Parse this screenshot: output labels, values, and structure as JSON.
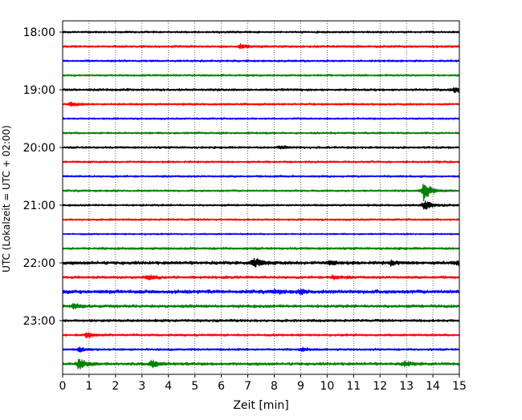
{
  "chart_data": {
    "type": "line",
    "title": "",
    "xlabel": "Zeit  [min]",
    "ylabel": "UTC (Lokalzeit = UTC + 02:00)",
    "xlim": [
      0,
      15
    ],
    "xticks": [
      0,
      1,
      2,
      3,
      4,
      5,
      6,
      7,
      8,
      9,
      10,
      11,
      12,
      13,
      14,
      15
    ],
    "ytick_labels": [
      "18:00",
      "19:00",
      "20:00",
      "21:00",
      "22:00",
      "23:00"
    ],
    "row_minutes_start": 0,
    "row_minutes_step": 15,
    "grid": "vertical dotted",
    "colors": [
      "#000000",
      "#ff0000",
      "#0000ff",
      "#008000"
    ],
    "rows": [
      {
        "start": "18:00",
        "amplitude": 1.0,
        "events": []
      },
      {
        "start": "18:15",
        "amplitude": 1.1,
        "events": [
          {
            "x": 6.7,
            "a": 2.5
          }
        ]
      },
      {
        "start": "18:30",
        "amplitude": 1.0,
        "events": []
      },
      {
        "start": "18:45",
        "amplitude": 1.0,
        "events": []
      },
      {
        "start": "19:00",
        "amplitude": 1.2,
        "events": [
          {
            "x": 14.8,
            "a": 3.5
          }
        ]
      },
      {
        "start": "19:15",
        "amplitude": 1.0,
        "events": [
          {
            "x": 0.3,
            "a": 2.5
          }
        ]
      },
      {
        "start": "19:30",
        "amplitude": 0.9,
        "events": []
      },
      {
        "start": "19:45",
        "amplitude": 1.0,
        "events": []
      },
      {
        "start": "20:00",
        "amplitude": 1.1,
        "events": [
          {
            "x": 8.2,
            "a": 1.5
          }
        ]
      },
      {
        "start": "20:15",
        "amplitude": 1.0,
        "events": []
      },
      {
        "start": "20:30",
        "amplitude": 1.0,
        "events": []
      },
      {
        "start": "20:45",
        "amplitude": 1.0,
        "events": [
          {
            "x": 13.65,
            "a": 12
          }
        ]
      },
      {
        "start": "21:00",
        "amplitude": 1.0,
        "events": [
          {
            "x": 13.65,
            "a": 6
          }
        ]
      },
      {
        "start": "21:15",
        "amplitude": 1.0,
        "events": []
      },
      {
        "start": "21:30",
        "amplitude": 0.8,
        "events": []
      },
      {
        "start": "21:45",
        "amplitude": 1.2,
        "events": []
      },
      {
        "start": "22:00",
        "amplitude": 1.6,
        "events": [
          {
            "x": 7.2,
            "a": 7
          },
          {
            "x": 10.1,
            "a": 2.5
          },
          {
            "x": 12.4,
            "a": 2.5
          },
          {
            "x": 14.9,
            "a": 2.5
          }
        ]
      },
      {
        "start": "22:15",
        "amplitude": 1.3,
        "events": [
          {
            "x": 3.2,
            "a": 3
          },
          {
            "x": 10.2,
            "a": 2.5
          }
        ]
      },
      {
        "start": "22:30",
        "amplitude": 1.8,
        "events": [
          {
            "x": 8.0,
            "a": 2
          },
          {
            "x": 9.0,
            "a": 2
          }
        ]
      },
      {
        "start": "22:45",
        "amplitude": 1.5,
        "events": [
          {
            "x": 0.4,
            "a": 3
          }
        ]
      },
      {
        "start": "23:00",
        "amplitude": 1.3,
        "events": []
      },
      {
        "start": "23:15",
        "amplitude": 1.1,
        "events": [
          {
            "x": 0.9,
            "a": 3
          }
        ]
      },
      {
        "start": "23:30",
        "amplitude": 1.1,
        "events": [
          {
            "x": 0.6,
            "a": 3
          },
          {
            "x": 9.0,
            "a": 2
          }
        ]
      },
      {
        "start": "23:45",
        "amplitude": 1.4,
        "events": [
          {
            "x": 0.6,
            "a": 7
          },
          {
            "x": 3.35,
            "a": 5
          },
          {
            "x": 12.9,
            "a": 3
          }
        ]
      }
    ]
  }
}
